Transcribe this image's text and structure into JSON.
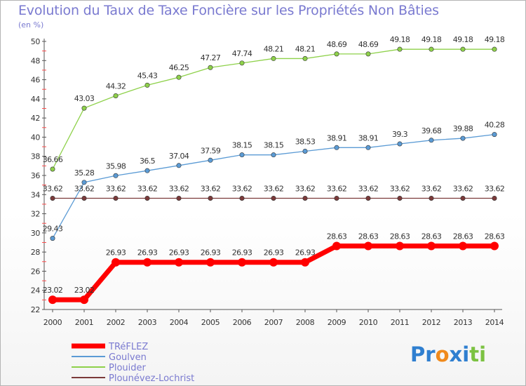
{
  "chart_data": {
    "type": "line",
    "title": "Evolution du Taux de Taxe Foncière sur les Propriétés Non Bâties",
    "unit_label": "(en %)",
    "x": [
      "2000",
      "2001",
      "2002",
      "2003",
      "2004",
      "2005",
      "2006",
      "2007",
      "2008",
      "2009",
      "2010",
      "2011",
      "2012",
      "2013",
      "2014"
    ],
    "ylim": [
      22,
      50
    ],
    "y_ticks": [
      22,
      24,
      26,
      28,
      30,
      32,
      34,
      36,
      38,
      40,
      42,
      44,
      46,
      48,
      50
    ],
    "grid": false,
    "legend_position": "bottom-left",
    "series": [
      {
        "name": "TRéFLEZ",
        "color": "#ff0000",
        "emphasis": true,
        "values": [
          23.02,
          23.02,
          26.93,
          26.93,
          26.93,
          26.93,
          26.93,
          26.93,
          26.93,
          28.63,
          28.63,
          28.63,
          28.63,
          28.63,
          28.63
        ],
        "labels": [
          "23.02",
          "23.02",
          "26.93",
          "26.93",
          "26.93",
          "26.93",
          "26.93",
          "26.93",
          "26.93",
          "28.63",
          "28.63",
          "28.63",
          "28.63",
          "28.63",
          "28.63"
        ]
      },
      {
        "name": "Goulven",
        "color": "#5b9bd5",
        "values": [
          29.43,
          35.28,
          35.98,
          36.5,
          37.04,
          37.59,
          38.15,
          38.15,
          38.53,
          38.91,
          38.91,
          39.3,
          39.68,
          39.88,
          40.28
        ],
        "labels": [
          "29.43",
          "35.28",
          "35.98",
          "36.5",
          "37.04",
          "37.59",
          "38.15",
          "38.15",
          "38.53",
          "38.91",
          "38.91",
          "39.3",
          "39.68",
          "39.88",
          "40.28"
        ]
      },
      {
        "name": "Plouider",
        "color": "#8ed14a",
        "values": [
          36.66,
          43.03,
          44.32,
          45.43,
          46.25,
          47.27,
          47.74,
          48.21,
          48.21,
          48.69,
          48.69,
          49.18,
          49.18,
          49.18,
          49.18
        ],
        "labels": [
          "36.66",
          "43.03",
          "44.32",
          "45.43",
          "46.25",
          "47.27",
          "47.74",
          "48.21",
          "48.21",
          "48.69",
          "48.69",
          "49.18",
          "49.18",
          "49.18",
          "49.18"
        ]
      },
      {
        "name": "Plounévez-Lochrist",
        "color": "#7b3a3a",
        "values": [
          33.62,
          33.62,
          33.62,
          33.62,
          33.62,
          33.62,
          33.62,
          33.62,
          33.62,
          33.62,
          33.62,
          33.62,
          33.62,
          33.62,
          33.62
        ],
        "labels": [
          "33.62",
          "33.62",
          "33.62",
          "33.62",
          "33.62",
          "33.62",
          "33.62",
          "33.62",
          "33.62",
          "33.62",
          "33.62",
          "33.62",
          "33.62",
          "33.62",
          "33.62"
        ]
      }
    ]
  },
  "logo": {
    "text": "Proxiti",
    "letters": [
      {
        "ch": "P",
        "color": "#2f7fd0"
      },
      {
        "ch": "r",
        "color": "#2f7fd0"
      },
      {
        "ch": "o",
        "color": "#f08a1c"
      },
      {
        "ch": "x",
        "color": "#2f7fd0"
      },
      {
        "ch": "i",
        "color": "#2f7fd0"
      },
      {
        "ch": "t",
        "color": "#7cc242"
      },
      {
        "ch": "i",
        "color": "#7cc242"
      }
    ]
  }
}
